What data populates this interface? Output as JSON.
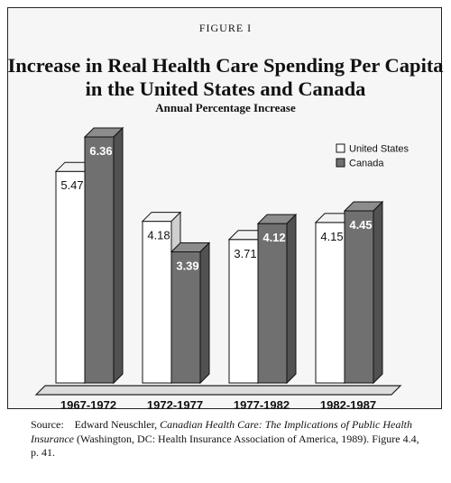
{
  "figure_label": "FIGURE I",
  "source": {
    "prefix": "Source:",
    "author": "Edward Neuschler,",
    "book_title": "Canadian Health Care: The Implications of Public Health Insurance",
    "rest": "(Washington, DC: Health Insurance Association of America, 1989). Figure 4.4, p. 41."
  },
  "chart_data": {
    "type": "bar",
    "title": "Increase in Real Health Care Spending Per Capita in the United States and Canada",
    "subtitle": "Annual Percentage Increase",
    "categories": [
      "1967-1972",
      "1972-1977",
      "1977-1982",
      "1982-1987"
    ],
    "series": [
      {
        "name": "United States",
        "values": [
          5.47,
          4.18,
          3.71,
          4.15
        ],
        "color": "#ffffff"
      },
      {
        "name": "Canada",
        "values": [
          6.36,
          3.39,
          4.12,
          4.45
        ],
        "color": "#707070"
      }
    ],
    "ylim": [
      0,
      6.36
    ],
    "grid": false,
    "legend": "top-right"
  }
}
